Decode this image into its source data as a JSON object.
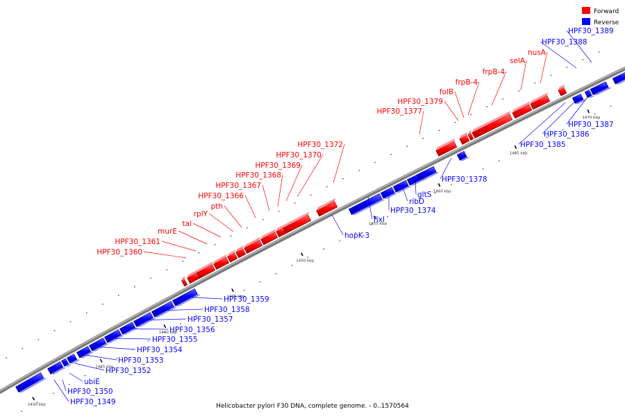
{
  "caption": "Helicobacter pylori F30 DNA, complete genome. - 0..1570564",
  "legend": {
    "forward_label": "Forward",
    "reverse_label": "Reverse",
    "forward_color": "#ff0000",
    "reverse_color": "#0000ff"
  },
  "ticks": [
    {
      "label": "1430 kbp"
    },
    {
      "label": "1435 kbp"
    },
    {
      "label": "1440 kbp"
    },
    {
      "label": "1445 kbp"
    },
    {
      "label": "1450 kbp"
    },
    {
      "label": "1455 kbp"
    },
    {
      "label": "1460 kbp"
    },
    {
      "label": "1465 kbp"
    },
    {
      "label": "1470 kbp"
    }
  ],
  "genes": [
    {
      "name": "HPF30_1349",
      "strand": "reverse"
    },
    {
      "name": "HPF30_1350",
      "strand": "reverse"
    },
    {
      "name": "ubiE",
      "strand": "reverse"
    },
    {
      "name": "HPF30_1352",
      "strand": "reverse"
    },
    {
      "name": "HPF30_1353",
      "strand": "reverse"
    },
    {
      "name": "HPF30_1354",
      "strand": "reverse"
    },
    {
      "name": "HPF30_1355",
      "strand": "reverse"
    },
    {
      "name": "HPF30_1356",
      "strand": "reverse"
    },
    {
      "name": "HPF30_1357",
      "strand": "reverse"
    },
    {
      "name": "HPF30_1358",
      "strand": "reverse"
    },
    {
      "name": "HPF30_1359",
      "strand": "reverse"
    },
    {
      "name": "HPF30_1360",
      "strand": "forward"
    },
    {
      "name": "HPF30_1361",
      "strand": "forward"
    },
    {
      "name": "murE",
      "strand": "forward"
    },
    {
      "name": "tal",
      "strand": "forward"
    },
    {
      "name": "rplY",
      "strand": "forward"
    },
    {
      "name": "pth",
      "strand": "forward"
    },
    {
      "name": "HPF30_1366",
      "strand": "forward"
    },
    {
      "name": "HPF30_1367",
      "strand": "forward"
    },
    {
      "name": "HPF30_1368",
      "strand": "forward"
    },
    {
      "name": "HPF30_1369",
      "strand": "forward"
    },
    {
      "name": "HPF30_1370",
      "strand": "forward"
    },
    {
      "name": "HPF30_1372",
      "strand": "forward"
    },
    {
      "name": "hopK-3",
      "strand": "reverse"
    },
    {
      "name": "fixI",
      "strand": "reverse"
    },
    {
      "name": "HPF30_1374",
      "strand": "reverse"
    },
    {
      "name": "ribD",
      "strand": "reverse"
    },
    {
      "name": "gltS",
      "strand": "reverse"
    },
    {
      "name": "HPF30_1377",
      "strand": "forward"
    },
    {
      "name": "HPF30_1378",
      "strand": "reverse"
    },
    {
      "name": "HPF30_1379",
      "strand": "forward"
    },
    {
      "name": "folB",
      "strand": "forward"
    },
    {
      "name": "frpB-4",
      "strand": "forward"
    },
    {
      "name": "frpB-4",
      "strand": "forward"
    },
    {
      "name": "selA",
      "strand": "forward"
    },
    {
      "name": "nusA",
      "strand": "forward"
    },
    {
      "name": "HPF30_1385",
      "strand": "reverse"
    },
    {
      "name": "HPF30_1386",
      "strand": "reverse"
    },
    {
      "name": "HPF30_1387",
      "strand": "reverse"
    },
    {
      "name": "HPF30_1388",
      "strand": "reverse"
    },
    {
      "name": "HPF30_1389",
      "strand": "reverse"
    }
  ]
}
